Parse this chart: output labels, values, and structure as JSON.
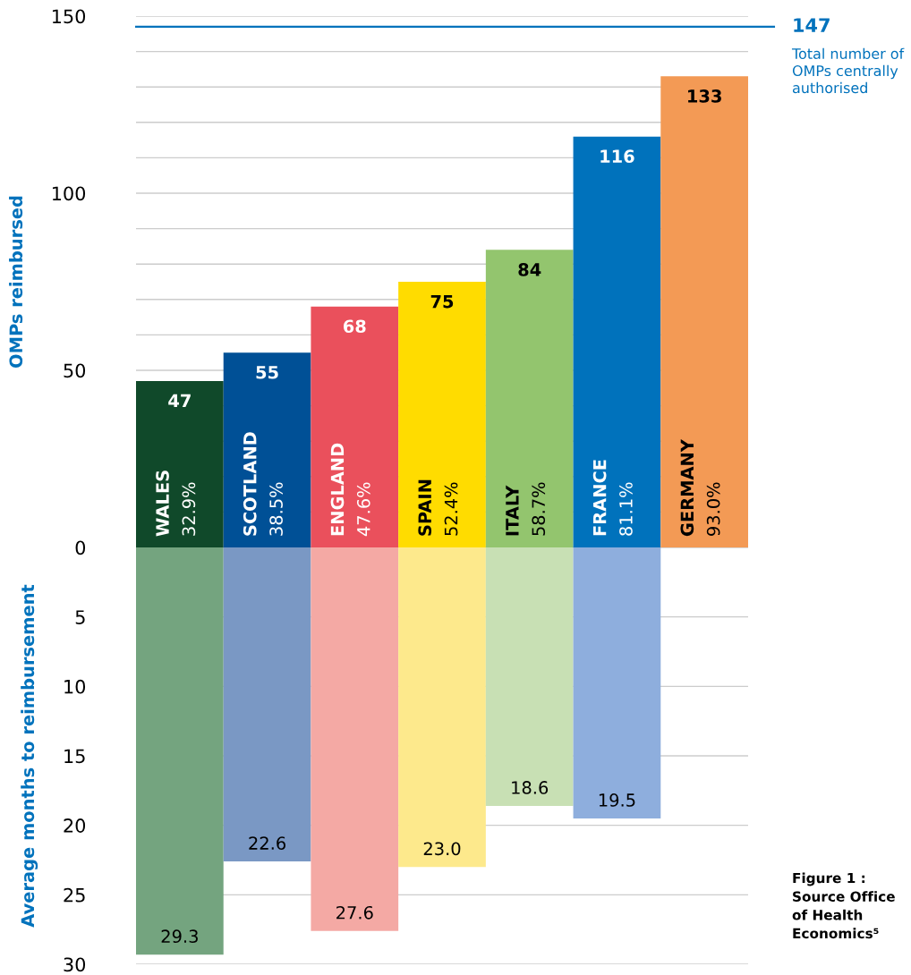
{
  "chart_data": [
    {
      "type": "bar",
      "ylabel": "OMPs reimbursed",
      "categories": [
        "WALES",
        "SCOTLAND",
        "ENGLAND",
        "SPAIN",
        "ITALY",
        "FRANCE",
        "GERMANY"
      ],
      "values": [
        47,
        55,
        68,
        75,
        84,
        116,
        133
      ],
      "colors": [
        "#10492a",
        "#005096",
        "#ea505c",
        "#ffdc00",
        "#93c56e",
        "#0072bc",
        "#f39a55"
      ],
      "data_labels": true,
      "ylim": [
        0,
        150
      ],
      "yticks": [
        0,
        {
          "value": 10,
          "label": null
        },
        {
          "value": 20,
          "label": null
        },
        {
          "value": 30,
          "label": null
        },
        {
          "value": 40,
          "label": null
        },
        50,
        {
          "value": 60,
          "label": null
        },
        {
          "value": 70,
          "label": null
        },
        {
          "value": 80,
          "label": null
        },
        {
          "value": 90,
          "label": null
        },
        100,
        {
          "value": 110,
          "label": null
        },
        {
          "value": 120,
          "label": null
        },
        {
          "value": 130,
          "label": null
        },
        {
          "value": 140,
          "label": null
        },
        150
      ],
      "grid": "y",
      "ref_lines": [
        {
          "axis": "y",
          "value": 147,
          "label": "147",
          "color": "#0072bc"
        }
      ],
      "annotations": [
        "Total number of OMPs centrally authorised",
        {
          "text": "32.9%",
          "x": "WALES",
          "y": 0
        },
        {
          "text": "38.5%",
          "x": "SCOTLAND",
          "y": 0
        },
        {
          "text": "47.6%",
          "x": "ENGLAND",
          "y": 0
        },
        {
          "text": "52.4%",
          "x": "SPAIN",
          "y": 0
        },
        {
          "text": "58.7%",
          "x": "ITALY",
          "y": 0
        },
        {
          "text": "81.1%",
          "x": "FRANCE",
          "y": 0
        },
        {
          "text": "93.0%",
          "x": "GERMANY",
          "y": 0
        }
      ]
    },
    {
      "type": "bar",
      "ylabel": "Average months to reimbursement",
      "categories": [
        null,
        null,
        null,
        null,
        null,
        null,
        null
      ],
      "values": [
        29.3,
        22.6,
        27.6,
        23.0,
        18.6,
        19.5,
        null
      ],
      "value_labels": [
        "29.3",
        "22.6",
        "27.6",
        "23.0",
        "18.6",
        "19.5",
        null
      ],
      "colors": [
        "#74a47f",
        "#7a98c4",
        "#f4a9a4",
        "#fde98c",
        "#c8e0b4",
        "#8eaedd",
        null
      ],
      "ylim": [
        30,
        0
      ],
      "yticks": [
        {
          "value": 0,
          "label": null
        },
        5,
        10,
        15,
        20,
        25,
        30
      ],
      "grid": "y",
      "annotations": [
        "Figure 1 :\nSource Office\nof Health\nEconomics⁵"
      ]
    }
  ]
}
